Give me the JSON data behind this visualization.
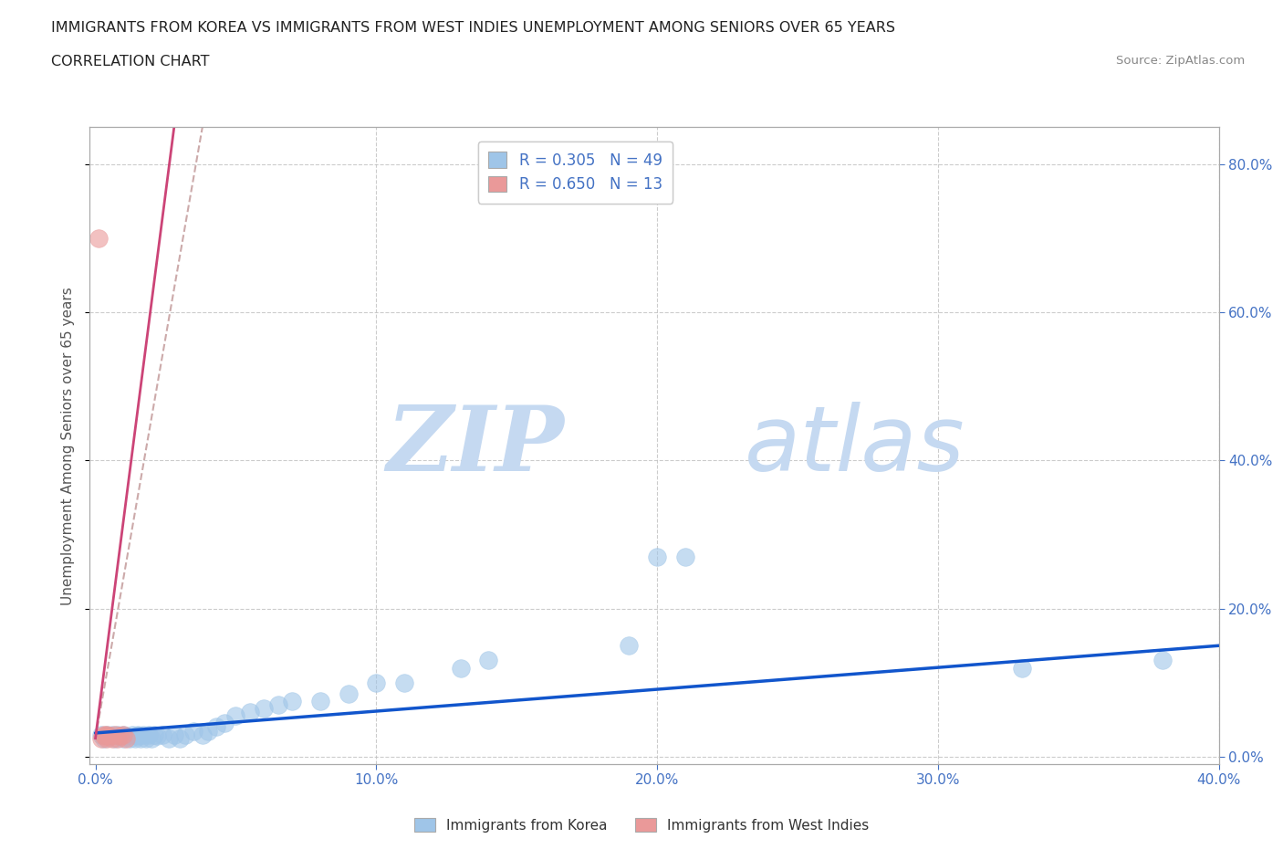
{
  "title_line1": "IMMIGRANTS FROM KOREA VS IMMIGRANTS FROM WEST INDIES UNEMPLOYMENT AMONG SENIORS OVER 65 YEARS",
  "title_line2": "CORRELATION CHART",
  "source_text": "Source: ZipAtlas.com",
  "ylabel": "Unemployment Among Seniors over 65 years",
  "xlim": [
    -0.002,
    0.4
  ],
  "ylim": [
    -0.01,
    0.85
  ],
  "x_ticks": [
    0.0,
    0.1,
    0.2,
    0.3,
    0.4
  ],
  "x_tick_labels": [
    "0.0%",
    "10.0%",
    "20.0%",
    "30.0%",
    "40.0%"
  ],
  "y_ticks": [
    0.0,
    0.2,
    0.4,
    0.6,
    0.8
  ],
  "y_tick_labels_right": [
    "0.0%",
    "20.0%",
    "40.0%",
    "60.0%",
    "80.0%"
  ],
  "korea_R": 0.305,
  "korea_N": 49,
  "wi_R": 0.65,
  "wi_N": 13,
  "korea_color": "#9fc5e8",
  "wi_color": "#ea9999",
  "korea_line_color": "#1155cc",
  "wi_line_color": "#cc4477",
  "wi_line_dash_color": "#ccaaaa",
  "korea_x": [
    0.002,
    0.003,
    0.004,
    0.005,
    0.006,
    0.007,
    0.008,
    0.009,
    0.01,
    0.01,
    0.011,
    0.012,
    0.013,
    0.014,
    0.015,
    0.015,
    0.016,
    0.017,
    0.018,
    0.019,
    0.02,
    0.021,
    0.022,
    0.024,
    0.026,
    0.028,
    0.03,
    0.032,
    0.035,
    0.038,
    0.04,
    0.043,
    0.046,
    0.05,
    0.055,
    0.06,
    0.065,
    0.07,
    0.08,
    0.09,
    0.1,
    0.11,
    0.13,
    0.14,
    0.19,
    0.2,
    0.21,
    0.33,
    0.38
  ],
  "korea_y": [
    0.03,
    0.025,
    0.03,
    0.028,
    0.03,
    0.025,
    0.03,
    0.028,
    0.03,
    0.025,
    0.028,
    0.025,
    0.03,
    0.025,
    0.028,
    0.03,
    0.025,
    0.03,
    0.025,
    0.03,
    0.025,
    0.03,
    0.028,
    0.03,
    0.025,
    0.03,
    0.025,
    0.03,
    0.035,
    0.03,
    0.035,
    0.04,
    0.045,
    0.055,
    0.06,
    0.065,
    0.07,
    0.075,
    0.075,
    0.085,
    0.1,
    0.1,
    0.12,
    0.13,
    0.15,
    0.27,
    0.27,
    0.12,
    0.13
  ],
  "wi_x": [
    0.001,
    0.002,
    0.003,
    0.003,
    0.004,
    0.004,
    0.005,
    0.006,
    0.007,
    0.008,
    0.009,
    0.01,
    0.011
  ],
  "wi_y": [
    0.7,
    0.025,
    0.028,
    0.03,
    0.025,
    0.03,
    0.028,
    0.025,
    0.03,
    0.025,
    0.028,
    0.03,
    0.025
  ],
  "trendline_korea_x0": 0.0,
  "trendline_korea_x1": 0.4,
  "trendline_korea_y0": 0.032,
  "trendline_korea_y1": 0.15,
  "trendline_wi_x0": 0.0,
  "trendline_wi_x1": 0.028,
  "trendline_wi_y0": 0.025,
  "trendline_wi_y1": 0.85,
  "trendline_wi_dash_x0": 0.0,
  "trendline_wi_dash_x1": 0.028,
  "trendline_wi_dash_y0": 0.025,
  "trendline_wi_dash_y1": 0.85,
  "watermark_zip": "ZIP",
  "watermark_atlas": "atlas",
  "watermark_color": "#c5d9f1",
  "background_color": "#ffffff",
  "grid_color": "#c0c0c0",
  "tick_label_color": "#4472c4",
  "axis_label_color": "#555555"
}
